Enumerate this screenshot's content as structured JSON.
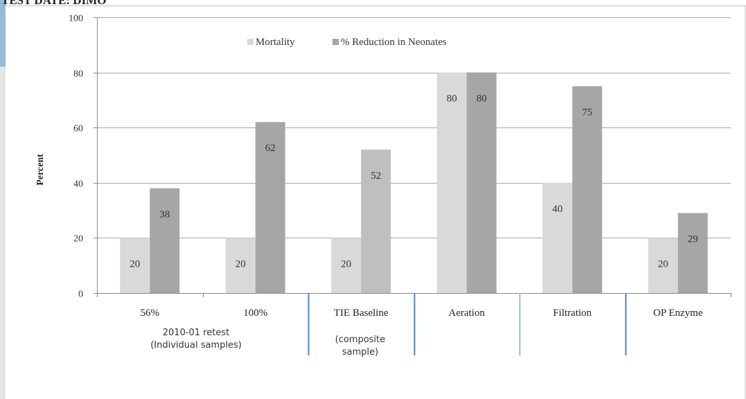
{
  "header": {
    "text": "TEST DATE:   DIMO"
  },
  "chart_data": {
    "type": "bar",
    "ylabel": "Percent",
    "xlabel": "",
    "ylim": [
      0,
      100
    ],
    "yticks": [
      0,
      20,
      40,
      60,
      80,
      100
    ],
    "grid": true,
    "legend_position": "top-center",
    "categories": [
      "56%",
      "100%",
      "TIE Baseline",
      "Aeration",
      "Filtration",
      "OP Enzyme"
    ],
    "series": [
      {
        "name": "Mortality",
        "values": [
          20,
          20,
          20,
          80,
          40,
          20
        ]
      },
      {
        "name": "% Reduction in Neonates",
        "values": [
          38,
          62,
          52,
          80,
          75,
          29
        ]
      }
    ],
    "group_labels": [
      {
        "lines": [
          "2010-01 retest",
          "(Individual samples)"
        ]
      },
      {
        "lines": [
          "(composite",
          "sample)"
        ]
      }
    ],
    "colors": {
      "mortality": "#d9d9d9",
      "reduction": "#a6a6a6",
      "reduction_baseline": "#bfbfbf",
      "gridline": "#a6a6a6",
      "separator": "#4f81bd"
    }
  }
}
